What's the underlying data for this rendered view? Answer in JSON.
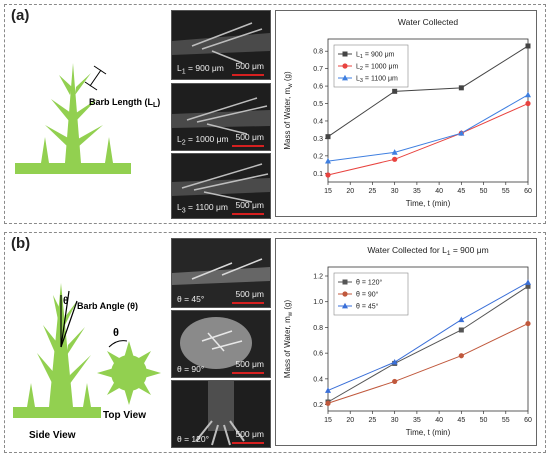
{
  "panel_a": {
    "label": "(a)",
    "diagram_annotation": "Barb Length (L",
    "diagram_annotation_sub": "L",
    "diagram_annotation_end": ")",
    "images": [
      {
        "label": "L",
        "sub": "1",
        "rest": " = 900 μm",
        "scale": "500 μm"
      },
      {
        "label": "L",
        "sub": "2",
        "rest": " = 1000 μm",
        "scale": "500 μm"
      },
      {
        "label": "L",
        "sub": "3",
        "rest": " = 1100 μm",
        "scale": "500 μm"
      }
    ]
  },
  "panel_b": {
    "label": "(b)",
    "diagram_annotation": "Barb Angle (θ)",
    "theta_symbol": "θ",
    "side_view": "Side View",
    "top_view": "Top View",
    "images": [
      {
        "label": "θ = 45°",
        "scale": "500 μm"
      },
      {
        "label": "θ = 90°",
        "scale": "500 μm"
      },
      {
        "label": "θ = 120°",
        "scale": "500 μm"
      }
    ]
  },
  "colors": {
    "plant_green": "#92d050",
    "black": "#444444",
    "red": "#e8433f",
    "blue": "#3f7fe0",
    "brown": "#c0583c",
    "blue2": "#3a6fd8",
    "grey": "#555555"
  },
  "chart_data": [
    {
      "type": "line",
      "title": "Water Collected",
      "xlabel": "Time, t (min)",
      "ylabel": "Mass of Water, m",
      "ylabel_sub": "w",
      "ylabel_unit": " (g)",
      "x": [
        15,
        30,
        45,
        60
      ],
      "xlim": [
        15,
        60
      ],
      "ylim": [
        0.05,
        0.87
      ],
      "xticks": [
        15,
        20,
        25,
        30,
        35,
        40,
        45,
        50,
        55,
        60
      ],
      "yticks": [
        0.1,
        0.2,
        0.3,
        0.4,
        0.5,
        0.6,
        0.7,
        0.8
      ],
      "legend_position": "top-left",
      "series": [
        {
          "name_main": "L",
          "name_sub": "1",
          "name_rest": " = 900 μm",
          "values": [
            0.31,
            0.57,
            0.59,
            0.83
          ],
          "color": "#444444",
          "marker": "square"
        },
        {
          "name_main": "L",
          "name_sub": "2",
          "name_rest": " = 1000 μm",
          "values": [
            0.09,
            0.18,
            0.33,
            0.5
          ],
          "color": "#e8433f",
          "marker": "circle"
        },
        {
          "name_main": "L",
          "name_sub": "3",
          "name_rest": " = 1100 μm",
          "values": [
            0.17,
            0.22,
            0.33,
            0.55
          ],
          "color": "#3f7fe0",
          "marker": "triangle"
        }
      ]
    },
    {
      "type": "line",
      "title": "Water Collected for L",
      "title_sub": "1",
      "title_rest": " = 900 μm",
      "xlabel": "Time, t (min)",
      "ylabel": "Mass of Water, m",
      "ylabel_sub": "w",
      "ylabel_unit": " (g)",
      "x": [
        15,
        30,
        45,
        60
      ],
      "xlim": [
        15,
        60
      ],
      "ylim": [
        0.15,
        1.27
      ],
      "xticks": [
        15,
        20,
        25,
        30,
        35,
        40,
        45,
        50,
        55,
        60
      ],
      "yticks": [
        0.2,
        0.4,
        0.6,
        0.8,
        1.0,
        1.2
      ],
      "legend_position": "top-left",
      "series": [
        {
          "name_main": "θ = 120°",
          "values": [
            0.22,
            0.52,
            0.78,
            1.12
          ],
          "color": "#555555",
          "marker": "square"
        },
        {
          "name_main": "θ = 90°",
          "values": [
            0.21,
            0.38,
            0.58,
            0.83
          ],
          "color": "#c0583c",
          "marker": "circle"
        },
        {
          "name_main": "θ = 45°",
          "values": [
            0.31,
            0.53,
            0.86,
            1.15
          ],
          "color": "#3a6fd8",
          "marker": "triangle"
        }
      ]
    }
  ]
}
